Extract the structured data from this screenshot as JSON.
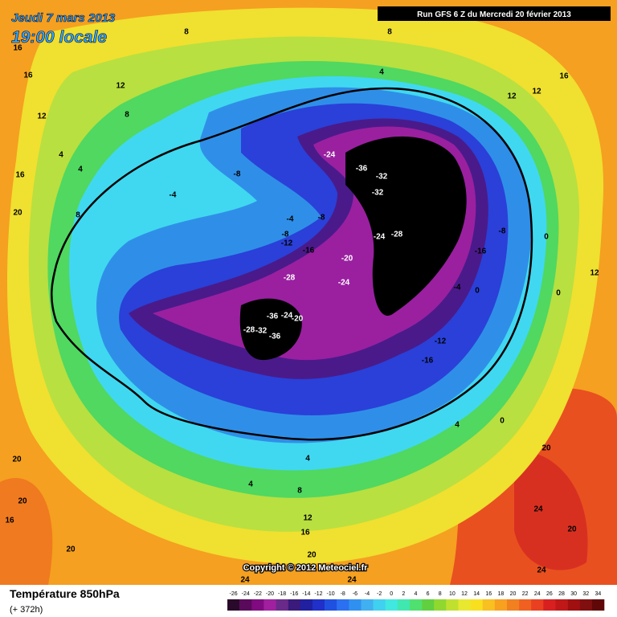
{
  "header": {
    "date": "Jeudi 7 mars 2013",
    "time": "19:00 locale",
    "run": "Run GFS 6 Z du Mercredi 20 février 2013"
  },
  "footer": {
    "copyright": "Copyright © 2012 Meteociel.fr",
    "title": "Température 850hPa",
    "lead": "(+ 372h)"
  },
  "colorbar": {
    "labels": [
      -26,
      -24,
      -22,
      -20,
      -18,
      -16,
      -14,
      -12,
      -10,
      -8,
      -6,
      -4,
      -2,
      0,
      2,
      4,
      6,
      8,
      10,
      12,
      14,
      16,
      18,
      20,
      22,
      24,
      26,
      28,
      30,
      32,
      34
    ],
    "colors": [
      "#2a0a2a",
      "#5a0a5a",
      "#800a80",
      "#a020a0",
      "#6a2a8a",
      "#3a1a7a",
      "#2020a0",
      "#2030c8",
      "#2050e0",
      "#2a70f0",
      "#3090f0",
      "#40b0f0",
      "#40d0f0",
      "#40e8e0",
      "#40e8b0",
      "#50e070",
      "#60d040",
      "#90d830",
      "#c0e030",
      "#e8e830",
      "#f8e020",
      "#f8c020",
      "#f8a020",
      "#f08020",
      "#f06020",
      "#e84020",
      "#d82020",
      "#c01818",
      "#a01010",
      "#801010",
      "#600808"
    ]
  },
  "contour_labels": [
    8,
    16,
    16,
    12,
    12,
    8,
    8,
    4,
    12,
    16,
    12,
    16,
    4,
    4,
    20,
    8,
    -4,
    -8,
    -4,
    -8,
    -8,
    -12,
    -16,
    -20,
    -24,
    -28,
    -24,
    -36,
    -32,
    -32,
    -24,
    -28,
    -8,
    0,
    12,
    -16,
    -4,
    0,
    0,
    -36,
    -24,
    -20,
    -28,
    -32,
    -36,
    -12,
    -16,
    4,
    0,
    4,
    4,
    8,
    12,
    16,
    20,
    20,
    20,
    16,
    20,
    20,
    24,
    20,
    24,
    24,
    24
  ]
}
